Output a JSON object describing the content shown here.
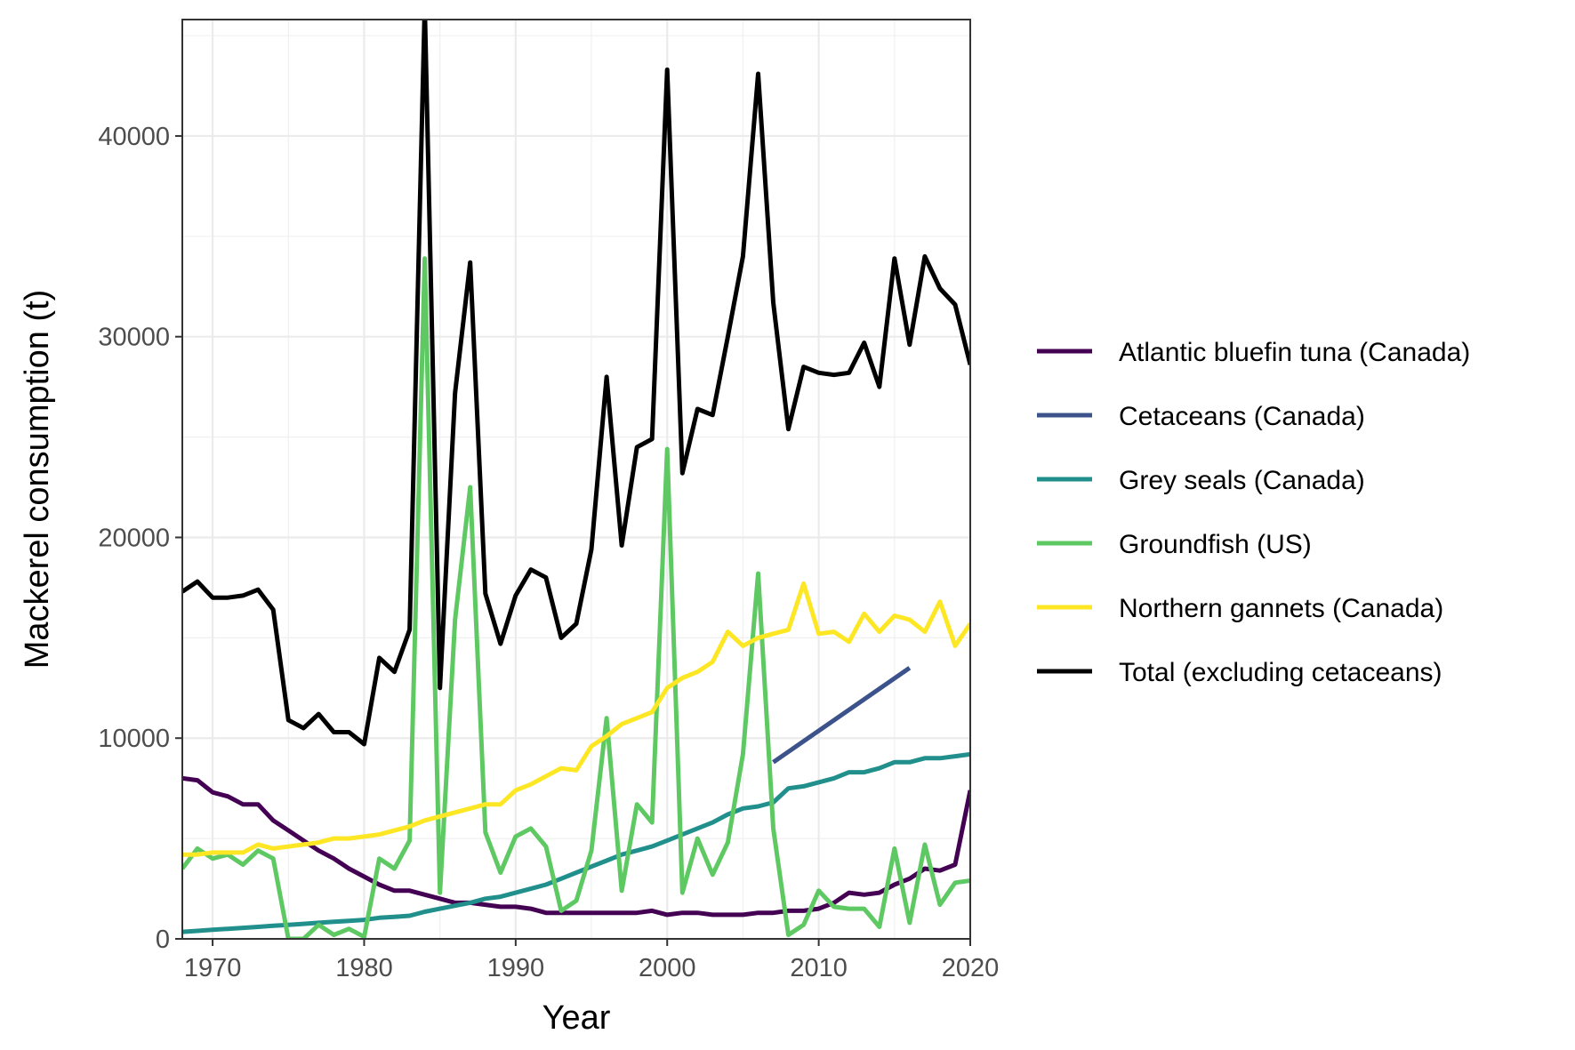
{
  "chart_data": {
    "type": "line",
    "title": "",
    "xlabel": "Year",
    "ylabel": "Mackerel consumption (t)",
    "xlim": [
      1968,
      2020
    ],
    "ylim": [
      0,
      45800
    ],
    "x_ticks": [
      "1970",
      "1980",
      "1990",
      "2000",
      "2010",
      "2020"
    ],
    "y_ticks": [
      "0",
      "10000",
      "20000",
      "30000",
      "40000"
    ],
    "grid": true,
    "legend_position": "right",
    "series": [
      {
        "name": "Atlantic bluefin tuna (Canada)",
        "color": "#440154",
        "x": [
          1968,
          1969,
          1970,
          1971,
          1972,
          1973,
          1974,
          1975,
          1976,
          1977,
          1978,
          1979,
          1980,
          1981,
          1982,
          1983,
          1984,
          1985,
          1986,
          1987,
          1988,
          1989,
          1990,
          1991,
          1992,
          1993,
          1994,
          1995,
          1996,
          1997,
          1998,
          1999,
          2000,
          2001,
          2002,
          2003,
          2004,
          2005,
          2006,
          2007,
          2008,
          2009,
          2010,
          2011,
          2012,
          2013,
          2014,
          2015,
          2016,
          2017,
          2018,
          2019,
          2020
        ],
        "y": [
          8000,
          7900,
          7300,
          7100,
          6700,
          6700,
          5900,
          5400,
          4900,
          4400,
          4000,
          3500,
          3100,
          2700,
          2400,
          2400,
          2200,
          2000,
          1800,
          1800,
          1700,
          1600,
          1600,
          1500,
          1300,
          1300,
          1300,
          1300,
          1300,
          1300,
          1300,
          1400,
          1200,
          1300,
          1300,
          1200,
          1200,
          1200,
          1300,
          1300,
          1400,
          1400,
          1500,
          1800,
          2300,
          2200,
          2300,
          2700,
          3000,
          3500,
          3400,
          3700,
          7400
        ]
      },
      {
        "name": "Cetaceans (Canada)",
        "color": "#3b528b",
        "x": [
          2007,
          2016
        ],
        "y": [
          8800,
          13500
        ]
      },
      {
        "name": "Grey seals (Canada)",
        "color": "#21908c",
        "x": [
          1968,
          1969,
          1970,
          1971,
          1972,
          1973,
          1974,
          1975,
          1976,
          1977,
          1978,
          1979,
          1980,
          1981,
          1982,
          1983,
          1984,
          1985,
          1986,
          1987,
          1988,
          1989,
          1990,
          1991,
          1992,
          1993,
          1994,
          1995,
          1996,
          1997,
          1998,
          1999,
          2000,
          2001,
          2002,
          2003,
          2004,
          2005,
          2006,
          2007,
          2008,
          2009,
          2010,
          2011,
          2012,
          2013,
          2014,
          2015,
          2016,
          2017,
          2018,
          2019,
          2020
        ],
        "y": [
          350,
          400,
          450,
          500,
          550,
          600,
          650,
          700,
          750,
          800,
          850,
          900,
          950,
          1050,
          1100,
          1150,
          1350,
          1500,
          1650,
          1800,
          2000,
          2100,
          2300,
          2500,
          2700,
          3000,
          3300,
          3600,
          3900,
          4200,
          4400,
          4600,
          4900,
          5200,
          5500,
          5800,
          6200,
          6500,
          6600,
          6800,
          7500,
          7600,
          7800,
          8000,
          8300,
          8300,
          8500,
          8800,
          8800,
          9000,
          9000,
          9100,
          9200
        ]
      },
      {
        "name": "Groundfish (US)",
        "color": "#5ec962",
        "x": [
          1968,
          1969,
          1970,
          1971,
          1972,
          1973,
          1974,
          1975,
          1976,
          1977,
          1978,
          1979,
          1980,
          1981,
          1982,
          1983,
          1984,
          1985,
          1986,
          1987,
          1988,
          1989,
          1990,
          1991,
          1992,
          1993,
          1994,
          1995,
          1996,
          1997,
          1998,
          1999,
          2000,
          2001,
          2002,
          2003,
          2004,
          2005,
          2006,
          2007,
          2008,
          2009,
          2010,
          2011,
          2012,
          2013,
          2014,
          2015,
          2016,
          2017,
          2018,
          2019,
          2020
        ],
        "y": [
          3500,
          4500,
          4000,
          4200,
          3700,
          4400,
          4000,
          0,
          0,
          700,
          200,
          500,
          100,
          4000,
          3500,
          4900,
          33900,
          2300,
          15900,
          22500,
          5300,
          3300,
          5100,
          5500,
          4600,
          1400,
          1900,
          4400,
          11000,
          2400,
          6700,
          5800,
          24400,
          2300,
          5000,
          3200,
          4800,
          9200,
          18200,
          5500,
          200,
          700,
          2400,
          1600,
          1500,
          1500,
          600,
          4500,
          800,
          4700,
          1700,
          2800,
          2900
        ]
      },
      {
        "name": "Northern gannets (Canada)",
        "color": "#fde725",
        "x": [
          1968,
          1969,
          1970,
          1971,
          1972,
          1973,
          1974,
          1975,
          1976,
          1977,
          1978,
          1979,
          1980,
          1981,
          1982,
          1983,
          1984,
          1985,
          1986,
          1987,
          1988,
          1989,
          1990,
          1991,
          1992,
          1993,
          1994,
          1995,
          1996,
          1997,
          1998,
          1999,
          2000,
          2001,
          2002,
          2003,
          2004,
          2005,
          2006,
          2007,
          2008,
          2009,
          2010,
          2011,
          2012,
          2013,
          2014,
          2015,
          2016,
          2017,
          2018,
          2019,
          2020
        ],
        "y": [
          4200,
          4200,
          4300,
          4300,
          4300,
          4700,
          4500,
          4600,
          4700,
          4800,
          5000,
          5000,
          5100,
          5200,
          5400,
          5600,
          5900,
          6100,
          6300,
          6500,
          6700,
          6700,
          7400,
          7700,
          8100,
          8500,
          8400,
          9600,
          10100,
          10700,
          11000,
          11300,
          12500,
          13000,
          13300,
          13800,
          15300,
          14600,
          15000,
          15200,
          15400,
          17700,
          15200,
          15300,
          14800,
          16200,
          15300,
          16100,
          15900,
          15300,
          16800,
          14600,
          15700
        ]
      },
      {
        "name": "Total (excluding cetaceans)",
        "color": "#000000",
        "x": [
          1968,
          1969,
          1970,
          1971,
          1972,
          1973,
          1974,
          1975,
          1976,
          1977,
          1978,
          1979,
          1980,
          1981,
          1982,
          1983,
          1984,
          1985,
          1986,
          1987,
          1988,
          1989,
          1990,
          1991,
          1992,
          1993,
          1994,
          1995,
          1996,
          1997,
          1998,
          1999,
          2000,
          2001,
          2002,
          2003,
          2004,
          2005,
          2006,
          2007,
          2008,
          2009,
          2010,
          2011,
          2012,
          2013,
          2014,
          2015,
          2016,
          2017,
          2018,
          2019,
          2020
        ],
        "y": [
          17300,
          17800,
          17000,
          17000,
          17100,
          17400,
          16400,
          10900,
          10500,
          11200,
          10300,
          10300,
          9700,
          14000,
          13300,
          15400,
          46500,
          12500,
          27200,
          33700,
          17200,
          14700,
          17100,
          18400,
          18000,
          15000,
          15700,
          19400,
          28000,
          19600,
          24500,
          24900,
          43300,
          23200,
          26400,
          26100,
          30000,
          34000,
          43100,
          31700,
          25400,
          28500,
          28200,
          28100,
          28200,
          29700,
          27500,
          33900,
          29600,
          34000,
          32400,
          31600,
          28600
        ]
      }
    ]
  }
}
